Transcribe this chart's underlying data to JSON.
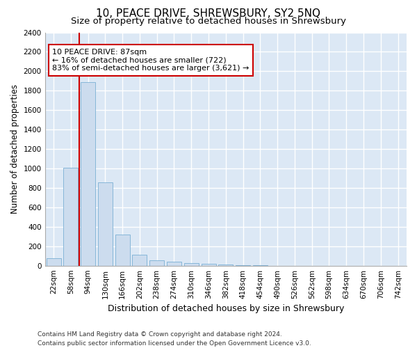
{
  "title": "10, PEACE DRIVE, SHREWSBURY, SY2 5NQ",
  "subtitle": "Size of property relative to detached houses in Shrewsbury",
  "xlabel": "Distribution of detached houses by size in Shrewsbury",
  "ylabel": "Number of detached properties",
  "bar_color": "#ccdcee",
  "bar_edge_color": "#7aafd4",
  "background_color": "#dce8f5",
  "grid_color": "#ffffff",
  "categories": [
    "22sqm",
    "58sqm",
    "94sqm",
    "130sqm",
    "166sqm",
    "202sqm",
    "238sqm",
    "274sqm",
    "310sqm",
    "346sqm",
    "382sqm",
    "418sqm",
    "454sqm",
    "490sqm",
    "526sqm",
    "562sqm",
    "598sqm",
    "634sqm",
    "670sqm",
    "706sqm",
    "742sqm"
  ],
  "values": [
    80,
    1010,
    1890,
    860,
    320,
    110,
    55,
    40,
    25,
    20,
    10,
    5,
    2,
    1,
    0,
    0,
    0,
    0,
    0,
    0,
    0
  ],
  "ylim": [
    0,
    2400
  ],
  "yticks": [
    0,
    200,
    400,
    600,
    800,
    1000,
    1200,
    1400,
    1600,
    1800,
    2000,
    2200,
    2400
  ],
  "property_line_color": "#cc0000",
  "annotation_text": "10 PEACE DRIVE: 87sqm\n← 16% of detached houses are smaller (722)\n83% of semi-detached houses are larger (3,621) →",
  "annotation_box_edgecolor": "#cc0000",
  "footer_line1": "Contains HM Land Registry data © Crown copyright and database right 2024.",
  "footer_line2": "Contains public sector information licensed under the Open Government Licence v3.0.",
  "title_fontsize": 11,
  "subtitle_fontsize": 9.5,
  "xlabel_fontsize": 9,
  "ylabel_fontsize": 8.5,
  "tick_fontsize": 7.5,
  "annotation_fontsize": 8,
  "footer_fontsize": 6.5
}
